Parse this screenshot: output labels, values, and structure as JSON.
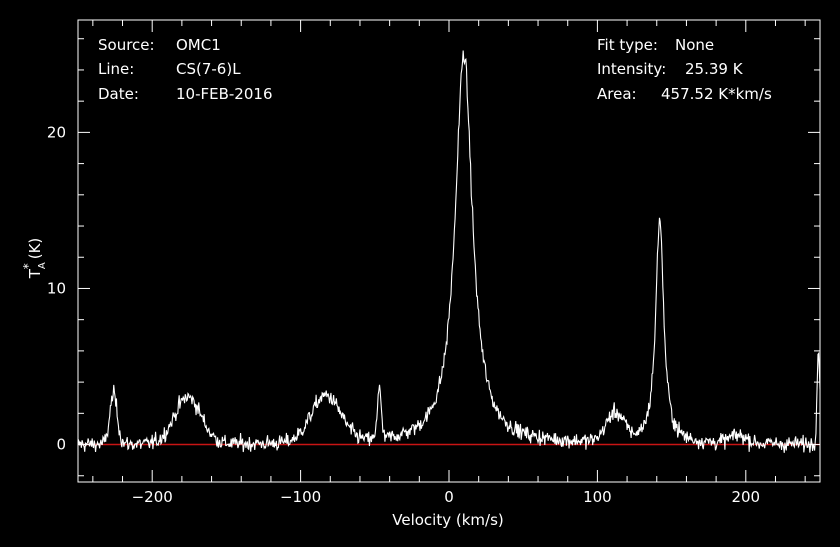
{
  "header": {
    "source_label": "Source:",
    "source_value": "OMC1",
    "line_label": "Line:",
    "line_value": "CS(7-6)L",
    "date_label": "Date:",
    "date_value": "10-FEB-2016",
    "fit_label": "Fit type:",
    "fit_value": "None",
    "intensity_label": "Intensity:",
    "intensity_value": "25.39 K",
    "area_label": "Area:",
    "area_value": "457.52 K*km/s"
  },
  "colors": {
    "background": "#000000",
    "trace": "#ffffff",
    "baseline": "#c81414",
    "axes": "#ffffff"
  },
  "chart_data": {
    "type": "line",
    "title": "",
    "xlabel": "Velocity (km/s)",
    "ylabel_main": "T",
    "ylabel_sup": "*",
    "ylabel_sub": "A",
    "ylabel_unit": "(K)",
    "xlim": [
      -250,
      250
    ],
    "ylim": [
      -2.4,
      27.2
    ],
    "grid": false,
    "x_ticks": [
      -200,
      -100,
      0,
      100,
      200
    ],
    "x_tick_labels": [
      "−200",
      "−100",
      "0",
      "100",
      "200"
    ],
    "y_ticks": [
      0,
      10,
      20
    ],
    "y_tick_labels": [
      "0",
      "10",
      "20"
    ],
    "baseline": 0,
    "noise_rms": 0.35,
    "components": [
      {
        "center": -226,
        "amplitude": 3.2,
        "width": 2.5,
        "shape": "gaussian"
      },
      {
        "center": -176,
        "amplitude": 3.0,
        "width": 9,
        "shape": "gaussian"
      },
      {
        "center": -83,
        "amplitude": 3.0,
        "width": 10,
        "shape": "gaussian"
      },
      {
        "center": -47,
        "amplitude": 3.5,
        "width": 1.2,
        "shape": "gaussian"
      },
      {
        "center": 10,
        "amplitude": 25.0,
        "width": 7,
        "shape": "lorentzian"
      },
      {
        "center": 112,
        "amplitude": 1.8,
        "width": 6,
        "shape": "gaussian"
      },
      {
        "center": 142,
        "amplitude": 14.5,
        "width": 3.2,
        "shape": "lorentzian"
      },
      {
        "center": 195,
        "amplitude": 0.5,
        "width": 6,
        "shape": "gaussian"
      },
      {
        "center": 249,
        "amplitude": 6.0,
        "width": 1.0,
        "shape": "gaussian"
      }
    ]
  }
}
